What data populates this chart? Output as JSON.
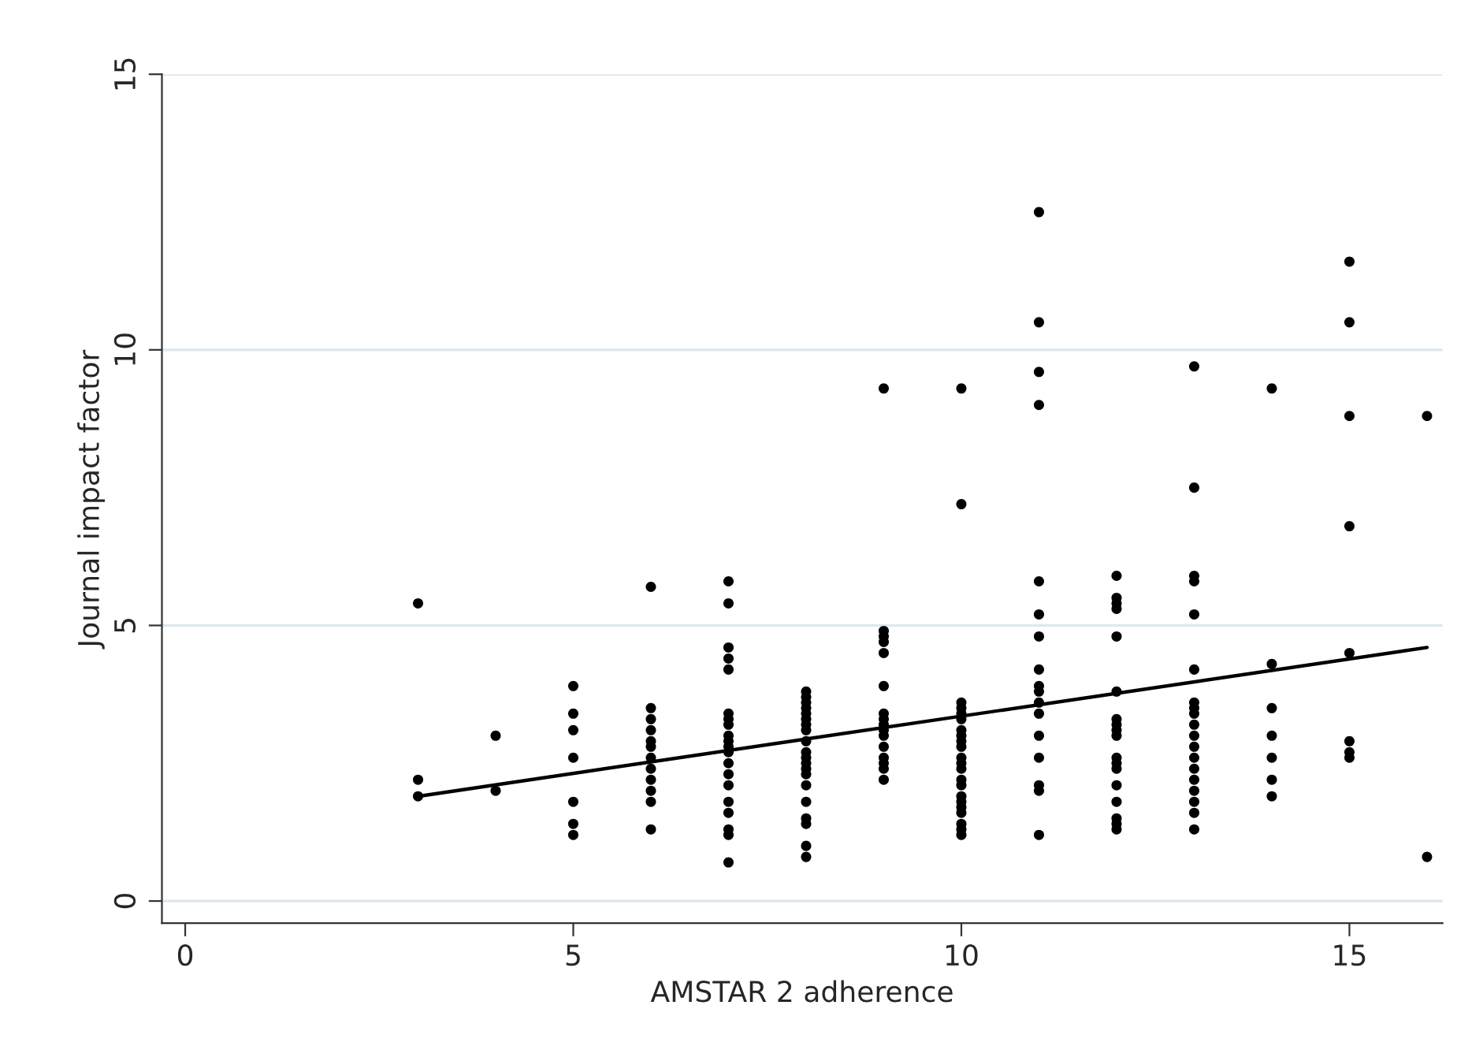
{
  "chart_data": {
    "type": "scatter",
    "xlabel": "AMSTAR 2 adherence",
    "ylabel": "Journal impact factor",
    "xlim": [
      -0.3,
      16.2
    ],
    "xticks": [
      0,
      5,
      10,
      15
    ],
    "ylim": [
      -0.4,
      15
    ],
    "yticks": [
      0,
      5,
      10,
      15
    ],
    "grid": "y",
    "legend": false,
    "series": [
      {
        "marker": "circle",
        "color": "#000000",
        "x": [
          3,
          3,
          3,
          4,
          4,
          5,
          5,
          5,
          5,
          5,
          5,
          5,
          6,
          6,
          6,
          6,
          6,
          6,
          6,
          6,
          6,
          6,
          6,
          6,
          7,
          7,
          7,
          7,
          7,
          7,
          7,
          7,
          7,
          7,
          7,
          7,
          7,
          7,
          7,
          7,
          7,
          7,
          7,
          7,
          8,
          8,
          8,
          8,
          8,
          8,
          8,
          8,
          8,
          8,
          8,
          8,
          8,
          8,
          8,
          8,
          8,
          8,
          8,
          8,
          9,
          9,
          9,
          9,
          9,
          9,
          9,
          9,
          9,
          9,
          9,
          9,
          9,
          9,
          9,
          9,
          10,
          10,
          10,
          10,
          10,
          10,
          10,
          10,
          10,
          10,
          10,
          10,
          10,
          10,
          10,
          10,
          10,
          10,
          10,
          10,
          10,
          10,
          11,
          11,
          11,
          11,
          11,
          11,
          11,
          11,
          11,
          11,
          11,
          11,
          11,
          11,
          11,
          11,
          11,
          12,
          12,
          12,
          12,
          12,
          12,
          12,
          12,
          12,
          12,
          12,
          12,
          12,
          12,
          12,
          12,
          12,
          12,
          13,
          13,
          13,
          13,
          13,
          13,
          13,
          13,
          13,
          13,
          13,
          13,
          13,
          13,
          13,
          13,
          13,
          13,
          13,
          14,
          14,
          14,
          14,
          14,
          14,
          14,
          15,
          15,
          15,
          15,
          15,
          15,
          15,
          15,
          16,
          16
        ],
        "values": [
          5.4,
          2.2,
          1.9,
          3.0,
          2.0,
          3.9,
          3.4,
          3.1,
          2.6,
          1.8,
          1.4,
          1.2,
          5.7,
          3.5,
          3.3,
          3.1,
          2.9,
          2.8,
          2.6,
          2.4,
          2.2,
          2.0,
          1.8,
          1.3,
          5.8,
          5.4,
          4.6,
          4.4,
          4.2,
          3.4,
          3.3,
          3.2,
          3.0,
          2.9,
          2.8,
          2.7,
          2.5,
          2.3,
          2.1,
          1.8,
          1.6,
          1.3,
          1.2,
          0.7,
          3.8,
          3.7,
          3.6,
          3.5,
          3.4,
          3.3,
          3.2,
          3.1,
          2.9,
          2.7,
          2.6,
          2.5,
          2.4,
          2.3,
          2.1,
          1.8,
          1.5,
          1.4,
          1.0,
          0.8,
          9.3,
          4.9,
          4.8,
          4.7,
          4.5,
          3.9,
          3.4,
          3.3,
          3.2,
          3.1,
          3.0,
          2.8,
          2.6,
          2.5,
          2.4,
          2.2,
          9.3,
          7.2,
          3.6,
          3.5,
          3.4,
          3.3,
          3.1,
          3.0,
          2.9,
          2.8,
          2.6,
          2.5,
          2.4,
          2.2,
          2.1,
          1.9,
          1.8,
          1.7,
          1.6,
          1.4,
          1.3,
          1.2,
          12.5,
          10.5,
          9.6,
          9.0,
          5.8,
          5.2,
          4.8,
          4.2,
          3.9,
          3.8,
          3.6,
          3.4,
          3.0,
          2.6,
          2.1,
          2.0,
          1.2,
          5.9,
          5.5,
          5.4,
          5.3,
          4.8,
          3.8,
          3.3,
          3.2,
          3.1,
          3.0,
          2.6,
          2.5,
          2.4,
          2.1,
          1.8,
          1.5,
          1.4,
          1.3,
          9.7,
          7.5,
          5.9,
          5.8,
          5.2,
          4.2,
          3.6,
          3.5,
          3.4,
          3.2,
          3.0,
          2.8,
          2.6,
          2.4,
          2.2,
          2.0,
          1.8,
          1.6,
          1.3,
          9.3,
          4.3,
          3.5,
          3.0,
          2.6,
          2.2,
          1.9,
          11.6,
          10.5,
          8.8,
          6.8,
          4.5,
          2.9,
          2.7,
          2.6,
          8.8,
          0.8
        ]
      },
      {
        "type": "line",
        "marker": "none",
        "color": "#000000",
        "x": [
          3,
          16
        ],
        "values": [
          1.9,
          4.6
        ]
      }
    ]
  }
}
